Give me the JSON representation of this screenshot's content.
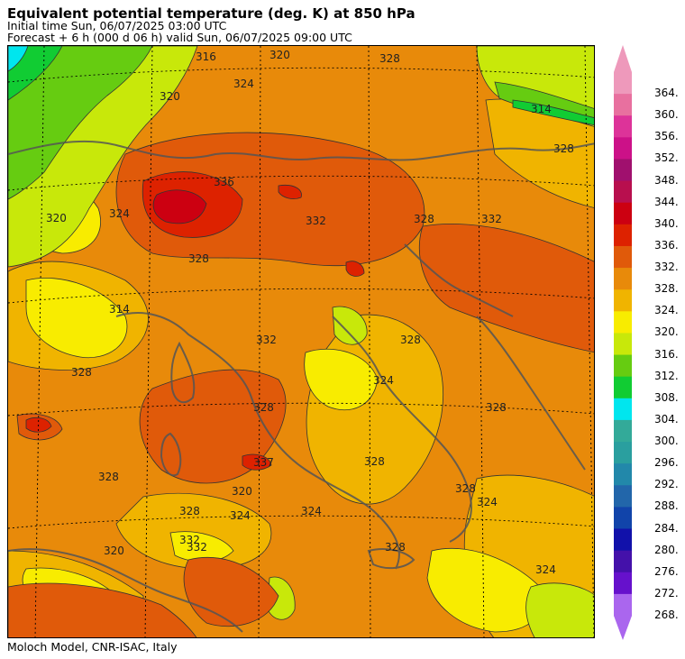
{
  "header": {
    "title": "Equivalent potential temperature (deg. K) at 850 hPa",
    "initial_time": "Initial time  Sun, 06/07/2025  03:00 UTC",
    "forecast": "Forecast  +   6 h  (000 d 06 h)  valid Sun, 06/07/2025 09:00 UTC"
  },
  "footer": {
    "credit": "Moloch Model, CNR-ISAC, Italy"
  },
  "colorbar": {
    "labels": [
      "364.",
      "360.",
      "356.",
      "352.",
      "348.",
      "344.",
      "340.",
      "336.",
      "332.",
      "328.",
      "324.",
      "320.",
      "316.",
      "312.",
      "308.",
      "304.",
      "300.",
      "296.",
      "292.",
      "288.",
      "284.",
      "280.",
      "276.",
      "272.",
      "268."
    ],
    "colors": [
      "#ee99bb",
      "#e8709f",
      "#dd3399",
      "#cc1188",
      "#a0106e",
      "#b80f4e",
      "#cc0011",
      "#dd2200",
      "#e05a0a",
      "#e88a0a",
      "#f0b400",
      "#f8ec00",
      "#c8e80a",
      "#66cc11",
      "#11cc33",
      "#00e6ee",
      "#33aa99",
      "#2a9f9f",
      "#2288aa",
      "#2266aa",
      "#1144aa",
      "#1111aa",
      "#4411aa",
      "#6611cc",
      "#aa66ee"
    ]
  },
  "contour_labels": [
    "316",
    "320",
    "320",
    "328",
    "324",
    "314",
    "328",
    "320",
    "328",
    "324",
    "314",
    "328",
    "336",
    "332",
    "328",
    "332",
    "332",
    "324",
    "328",
    "328",
    "337",
    "320",
    "324",
    "328",
    "328",
    "320",
    "324",
    "332",
    "328",
    "324",
    "328",
    "324",
    "328",
    "332",
    "328"
  ]
}
